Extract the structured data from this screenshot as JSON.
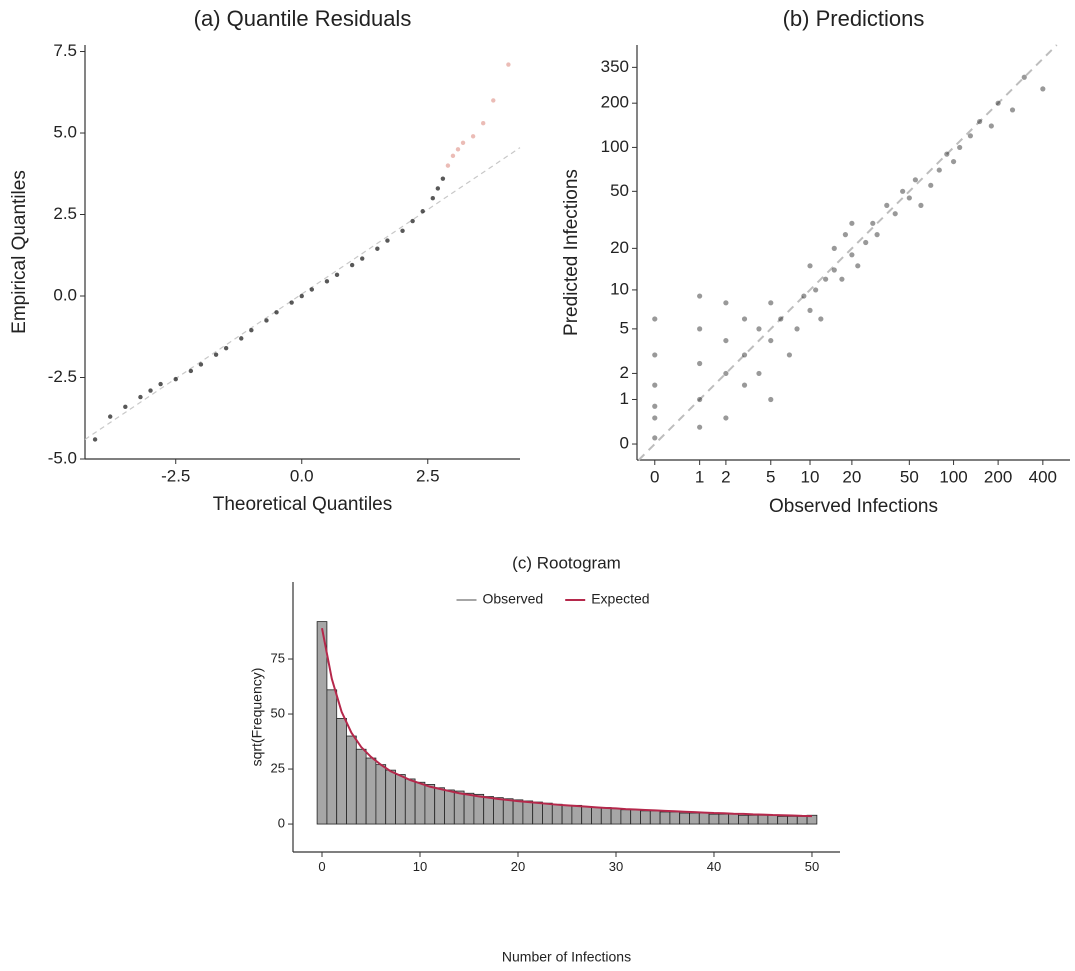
{
  "chart_data": [
    {
      "type": "scatter",
      "title": "(a) Quantile Residuals",
      "x_label": "Theoretical Quantiles",
      "y_label": "Empirical Quantiles",
      "xlim": [
        -4.3,
        4.33
      ],
      "ylim": [
        -5.0,
        7.7
      ],
      "xticks": [
        -2.5,
        {
          "value": 0,
          "label": "0.0"
        },
        2.5
      ],
      "yticks": [
        7.5,
        {
          "value": 5,
          "label": "5.0"
        },
        2.5,
        {
          "value": 0,
          "label": "0.0"
        },
        -2.5,
        {
          "value": -5,
          "label": "-5.0"
        }
      ],
      "reference_line": {
        "x": [
          -4.3,
          4.33
        ],
        "y": [
          -4.4,
          4.55
        ],
        "color": "#c8c8c8"
      },
      "series": [
        {
          "color": "#111111",
          "x": [
            -4.1,
            -3.8,
            -3.5,
            -3.2,
            -3.0,
            -2.8,
            -2.5,
            -2.2,
            -2.0,
            -1.7,
            -1.5,
            -1.2,
            -1.0,
            -0.7,
            -0.5,
            -0.2,
            0,
            0.2,
            0.5,
            0.7,
            1.0,
            1.2,
            1.5,
            1.7,
            2.0,
            2.2,
            2.4,
            2.6,
            2.7,
            2.8
          ],
          "values": [
            -4.4,
            -3.7,
            -3.4,
            -3.1,
            -2.9,
            -2.7,
            -2.55,
            -2.3,
            -2.1,
            -1.8,
            -1.6,
            -1.3,
            -1.05,
            -0.75,
            -0.5,
            -0.2,
            0.0,
            0.2,
            0.45,
            0.65,
            0.95,
            1.15,
            1.45,
            1.7,
            2.0,
            2.3,
            2.6,
            3.0,
            3.3,
            3.6
          ]
        },
        {
          "color": "#e3a097",
          "x": [
            2.9,
            3.0,
            3.1,
            3.2,
            3.4,
            3.6,
            3.8,
            4.1
          ],
          "values": [
            4.0,
            4.3,
            4.5,
            4.7,
            4.9,
            5.3,
            6.0,
            7.1
          ]
        }
      ]
    },
    {
      "type": "scatter",
      "title": "(b) Predictions",
      "x_label": "Observed Infections",
      "y_label": "Predicted Infections",
      "xscale": "log1p",
      "yscale": "log1p",
      "identity_line": true,
      "xlim": [
        -0.24,
        609
      ],
      "ylim": [
        -0.22,
        496
      ],
      "xticks": [
        0,
        1,
        2,
        5,
        10,
        20,
        50,
        100,
        200,
        400
      ],
      "yticks": [
        0,
        1,
        2,
        5,
        10,
        20,
        50,
        100,
        200,
        350
      ],
      "series": [
        {
          "color": "#000000",
          "x": [
            0,
            0,
            0,
            0,
            0,
            0,
            1,
            1,
            1,
            1,
            1,
            2,
            2,
            2,
            2,
            3,
            3,
            3,
            4,
            4,
            5,
            5,
            5,
            6,
            7,
            8,
            9,
            10,
            10,
            11,
            12,
            13,
            15,
            15,
            17,
            18,
            20,
            20,
            22,
            25,
            28,
            30,
            35,
            40,
            45,
            50,
            55,
            60,
            70,
            80,
            90,
            100,
            110,
            130,
            150,
            180,
            200,
            250,
            300,
            400
          ],
          "values": [
            0.1,
            0.5,
            1.5,
            3,
            6,
            0.8,
            0.3,
            1,
            2.5,
            5,
            9,
            0.5,
            2,
            4,
            8,
            1.5,
            3,
            6,
            2,
            5,
            1,
            4,
            8,
            6,
            3,
            5,
            9,
            7,
            15,
            10,
            6,
            12,
            14,
            20,
            12,
            25,
            18,
            30,
            15,
            22,
            30,
            25,
            40,
            35,
            50,
            45,
            60,
            40,
            55,
            70,
            90,
            80,
            100,
            120,
            150,
            140,
            200,
            180,
            300,
            250
          ]
        }
      ]
    },
    {
      "type": "bar",
      "title": "(c) Rootogram",
      "x_label": "Number of Infections",
      "y_label": "sqrt(Frequency)",
      "legend": "top",
      "xlim": [
        -2.96,
        52.86
      ],
      "ylim": [
        -12.7,
        110
      ],
      "xticks": [
        0,
        10,
        20,
        30,
        40,
        50
      ],
      "yticks": [
        0,
        25,
        50,
        75
      ],
      "x": [
        0,
        1,
        2,
        3,
        4,
        5,
        6,
        7,
        8,
        9,
        10,
        11,
        12,
        13,
        14,
        15,
        16,
        17,
        18,
        19,
        20,
        21,
        22,
        23,
        24,
        25,
        26,
        27,
        28,
        29,
        30,
        31,
        32,
        33,
        34,
        35,
        36,
        37,
        38,
        39,
        40,
        41,
        42,
        43,
        44,
        45,
        46,
        47,
        48,
        49,
        50
      ],
      "series": [
        {
          "name": "Observed",
          "color": "#a6a6a6",
          "values": [
            92,
            61,
            48,
            40,
            34,
            30,
            27,
            24.5,
            22.5,
            20.5,
            19,
            18,
            16.5,
            15.5,
            15,
            14,
            13.5,
            12.5,
            12,
            11.5,
            11,
            10.5,
            10,
            9.5,
            9,
            8.5,
            8.5,
            8,
            7.5,
            7.5,
            7,
            6.5,
            6.5,
            6,
            6,
            5.5,
            5.5,
            5,
            5,
            5,
            4.5,
            4.5,
            4.5,
            4,
            4,
            4,
            4,
            3.5,
            3.5,
            3.5,
            4
          ]
        },
        {
          "name": "Expected",
          "color": "#b5284b",
          "style": "line",
          "values": [
            89,
            66,
            51,
            41.5,
            35,
            30.5,
            27,
            24,
            22,
            20,
            18.5,
            17,
            16,
            15,
            14,
            13.3,
            12.6,
            12,
            11.4,
            10.9,
            10.4,
            10,
            9.6,
            9.2,
            8.8,
            8.5,
            8.2,
            7.9,
            7.6,
            7.3,
            7.1,
            6.8,
            6.6,
            6.4,
            6.2,
            6,
            5.8,
            5.6,
            5.4,
            5.2,
            5,
            4.9,
            4.7,
            4.6,
            4.4,
            4.3,
            4.1,
            4,
            3.9,
            3.7,
            3.6
          ]
        }
      ]
    }
  ]
}
